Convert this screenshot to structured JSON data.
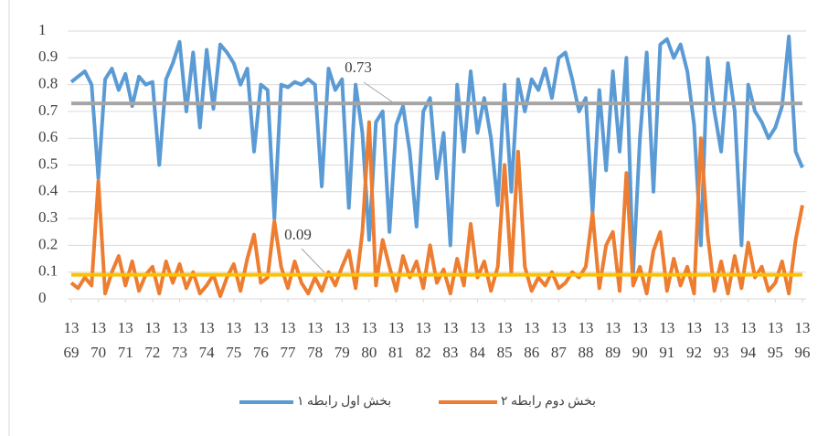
{
  "chart_data": {
    "type": "line",
    "x": [
      1369,
      1369.25,
      1369.5,
      1369.75,
      1370,
      1370.25,
      1370.5,
      1370.75,
      1371,
      1371.25,
      1371.5,
      1371.75,
      1372,
      1372.25,
      1372.5,
      1372.75,
      1373,
      1373.25,
      1373.5,
      1373.75,
      1374,
      1374.25,
      1374.5,
      1374.75,
      1375,
      1375.25,
      1375.5,
      1375.75,
      1376,
      1376.25,
      1376.5,
      1376.75,
      1377,
      1377.25,
      1377.5,
      1377.75,
      1378,
      1378.25,
      1378.5,
      1378.75,
      1379,
      1379.25,
      1379.5,
      1379.75,
      1380,
      1380.25,
      1380.5,
      1380.75,
      1381,
      1381.25,
      1381.5,
      1381.75,
      1382,
      1382.25,
      1382.5,
      1382.75,
      1383,
      1383.25,
      1383.5,
      1383.75,
      1384,
      1384.25,
      1384.5,
      1384.75,
      1385,
      1385.25,
      1385.5,
      1385.75,
      1386,
      1386.25,
      1386.5,
      1386.75,
      1387,
      1387.25,
      1387.5,
      1387.75,
      1388,
      1388.25,
      1388.5,
      1388.75,
      1389,
      1389.25,
      1389.5,
      1389.75,
      1390,
      1390.25,
      1390.5,
      1390.75,
      1391,
      1391.25,
      1391.5,
      1391.75,
      1392,
      1392.25,
      1392.5,
      1392.75,
      1393,
      1393.25,
      1393.5,
      1393.75,
      1394,
      1394.25,
      1394.5,
      1394.75,
      1395,
      1395.25,
      1395.5,
      1395.75,
      1396
    ],
    "series": [
      {
        "name": "بخش اول رابطه ۱",
        "color": "#5b9bd5",
        "values": [
          0.81,
          0.83,
          0.85,
          0.8,
          0.45,
          0.82,
          0.86,
          0.78,
          0.84,
          0.72,
          0.83,
          0.8,
          0.81,
          0.5,
          0.82,
          0.88,
          0.96,
          0.7,
          0.92,
          0.64,
          0.93,
          0.71,
          0.95,
          0.92,
          0.88,
          0.8,
          0.86,
          0.55,
          0.8,
          0.78,
          0.3,
          0.8,
          0.79,
          0.81,
          0.8,
          0.82,
          0.8,
          0.42,
          0.86,
          0.78,
          0.82,
          0.34,
          0.8,
          0.62,
          0.22,
          0.66,
          0.7,
          0.25,
          0.65,
          0.72,
          0.55,
          0.27,
          0.7,
          0.75,
          0.45,
          0.62,
          0.2,
          0.8,
          0.55,
          0.85,
          0.62,
          0.75,
          0.6,
          0.35,
          0.8,
          0.4,
          0.82,
          0.7,
          0.82,
          0.78,
          0.86,
          0.75,
          0.9,
          0.92,
          0.82,
          0.7,
          0.75,
          0.32,
          0.78,
          0.48,
          0.85,
          0.55,
          0.9,
          0.1,
          0.6,
          0.92,
          0.4,
          0.95,
          0.97,
          0.9,
          0.95,
          0.85,
          0.65,
          0.2,
          0.9,
          0.7,
          0.55,
          0.88,
          0.7,
          0.2,
          0.8,
          0.7,
          0.66,
          0.6,
          0.64,
          0.72,
          0.98,
          0.55,
          0.49
        ]
      },
      {
        "name": "بخش دوم رابطه ۲",
        "color": "#ed7d31",
        "values": [
          0.06,
          0.04,
          0.08,
          0.05,
          0.44,
          0.02,
          0.1,
          0.16,
          0.05,
          0.14,
          0.03,
          0.09,
          0.12,
          0.02,
          0.14,
          0.06,
          0.13,
          0.04,
          0.1,
          0.02,
          0.05,
          0.09,
          0.01,
          0.08,
          0.13,
          0.03,
          0.15,
          0.24,
          0.06,
          0.08,
          0.29,
          0.12,
          0.04,
          0.14,
          0.06,
          0.02,
          0.08,
          0.03,
          0.1,
          0.05,
          0.12,
          0.18,
          0.04,
          0.25,
          0.66,
          0.05,
          0.22,
          0.12,
          0.03,
          0.16,
          0.08,
          0.14,
          0.04,
          0.2,
          0.06,
          0.11,
          0.02,
          0.15,
          0.05,
          0.28,
          0.08,
          0.14,
          0.03,
          0.12,
          0.5,
          0.1,
          0.55,
          0.12,
          0.03,
          0.08,
          0.05,
          0.1,
          0.04,
          0.06,
          0.1,
          0.08,
          0.12,
          0.32,
          0.04,
          0.2,
          0.25,
          0.03,
          0.47,
          0.05,
          0.12,
          0.02,
          0.18,
          0.25,
          0.03,
          0.15,
          0.05,
          0.12,
          0.02,
          0.6,
          0.24,
          0.03,
          0.14,
          0.02,
          0.16,
          0.04,
          0.21,
          0.08,
          0.12,
          0.03,
          0.06,
          0.14,
          0.02,
          0.22,
          0.35
        ]
      }
    ],
    "reference_lines": [
      {
        "value": 0.73,
        "color": "#a5a5a5"
      },
      {
        "value": 0.09,
        "color": "#ffc000"
      }
    ],
    "xlim": [
      1369,
      1396
    ],
    "xticks": [
      1369,
      1370,
      1371,
      1372,
      1373,
      1374,
      1375,
      1376,
      1377,
      1378,
      1379,
      1380,
      1381,
      1382,
      1383,
      1384,
      1385,
      1386,
      1387,
      1388,
      1389,
      1390,
      1391,
      1392,
      1393,
      1394,
      1395,
      1396
    ],
    "ylim": [
      0,
      1
    ],
    "yticks": [
      0,
      0.1,
      0.2,
      0.3,
      0.4,
      0.5,
      0.6,
      0.7,
      0.8,
      0.9,
      1
    ],
    "grid": true,
    "legend": "bottom"
  }
}
